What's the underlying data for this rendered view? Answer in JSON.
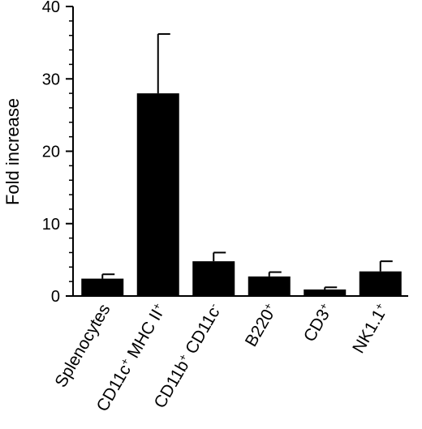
{
  "chart_data": {
    "type": "bar",
    "title": "",
    "xlabel": "",
    "ylabel": "Fold increase",
    "ylim": [
      0,
      40
    ],
    "yticks": [
      0,
      10,
      20,
      30,
      40
    ],
    "grid": false,
    "error_bars": true,
    "categories": [
      {
        "base": "Splenocytes",
        "parts": [
          {
            "t": "Splenocytes"
          }
        ]
      },
      {
        "base": "CD11c+ MHC II+",
        "parts": [
          {
            "t": "CD11c"
          },
          {
            "t": "+",
            "sup": true
          },
          {
            "t": " MHC II"
          },
          {
            "t": "+",
            "sup": true
          }
        ]
      },
      {
        "base": "CD11b+ CD11c-",
        "parts": [
          {
            "t": "CD11b"
          },
          {
            "t": "+",
            "sup": true
          },
          {
            "t": " CD11c"
          },
          {
            "t": "-",
            "sup": true
          }
        ]
      },
      {
        "base": "B220+",
        "parts": [
          {
            "t": "B220"
          },
          {
            "t": "+",
            "sup": true
          }
        ]
      },
      {
        "base": "CD3+",
        "parts": [
          {
            "t": "CD3"
          },
          {
            "t": "+",
            "sup": true
          }
        ]
      },
      {
        "base": "NK1.1+",
        "parts": [
          {
            "t": "NK1.1"
          },
          {
            "t": "+",
            "sup": true
          }
        ]
      }
    ],
    "values": [
      2.4,
      28.0,
      4.8,
      2.7,
      0.9,
      3.4
    ],
    "errors": [
      0.6,
      8.2,
      1.2,
      0.6,
      0.3,
      1.4
    ],
    "bar_color": "#000000"
  }
}
